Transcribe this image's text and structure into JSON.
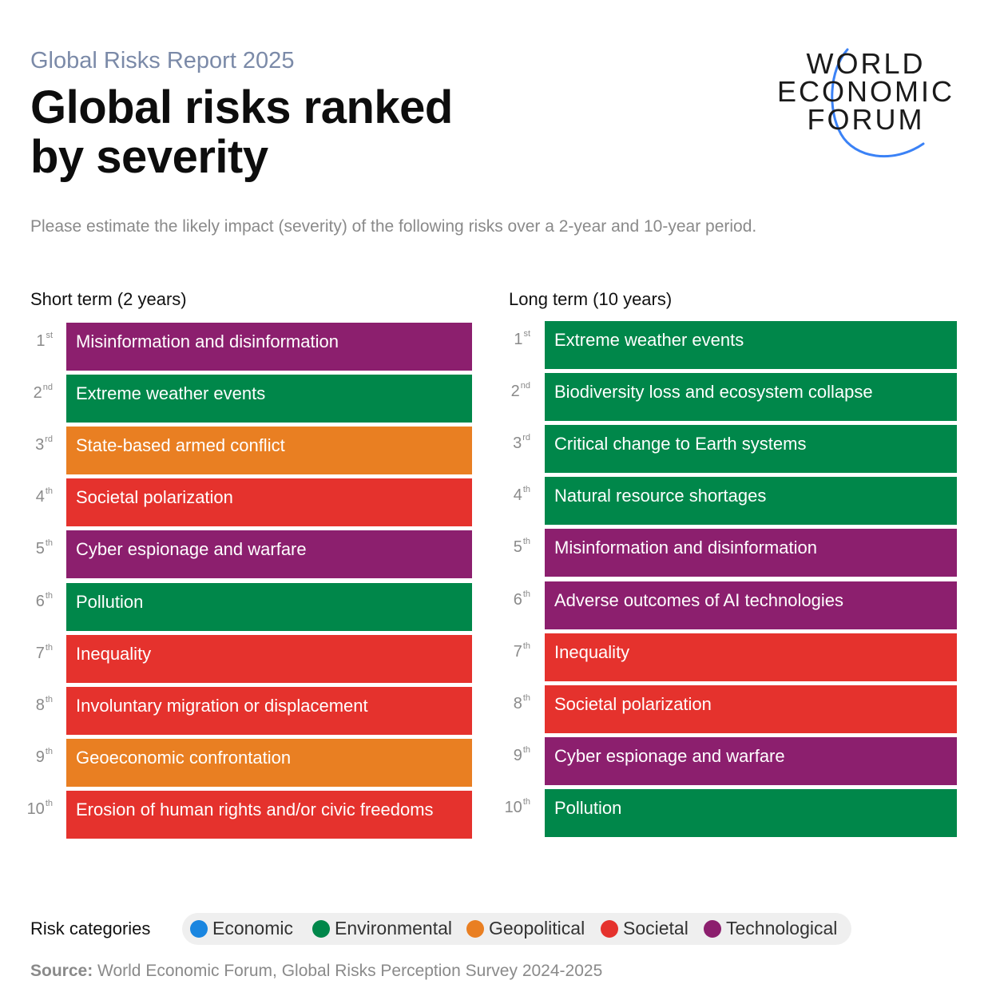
{
  "header": {
    "eyebrow": "Global Risks Report 2025",
    "title_line1": "Global risks ranked",
    "title_line2": "by severity",
    "subtitle": "Please estimate the likely impact (severity) of the following risks over a 2-year and 10-year period."
  },
  "logo": {
    "line1": "WORLD",
    "line2": "ECONOMIC",
    "line3": "FORUM",
    "accent_color": "#3b82f6"
  },
  "colors": {
    "Economic": "#1a86e0",
    "Environmental": "#00874a",
    "Geopolitical": "#e97f22",
    "Societal": "#e5322d",
    "Technological": "#8c1f6e"
  },
  "chart_data": {
    "type": "table",
    "columns": [
      {
        "heading": "Short term (2 years)",
        "rows": [
          {
            "rank": "1",
            "suffix": "st",
            "label": "Misinformation and disinformation",
            "category": "Technological"
          },
          {
            "rank": "2",
            "suffix": "nd",
            "label": "Extreme weather events",
            "category": "Environmental"
          },
          {
            "rank": "3",
            "suffix": "rd",
            "label": "State-based armed conflict",
            "category": "Geopolitical"
          },
          {
            "rank": "4",
            "suffix": "th",
            "label": "Societal polarization",
            "category": "Societal"
          },
          {
            "rank": "5",
            "suffix": "th",
            "label": "Cyber espionage and warfare",
            "category": "Technological"
          },
          {
            "rank": "6",
            "suffix": "th",
            "label": "Pollution",
            "category": "Environmental"
          },
          {
            "rank": "7",
            "suffix": "th",
            "label": "Inequality",
            "category": "Societal"
          },
          {
            "rank": "8",
            "suffix": "th",
            "label": "Involuntary migration or displacement",
            "category": "Societal"
          },
          {
            "rank": "9",
            "suffix": "th",
            "label": "Geoeconomic confrontation",
            "category": "Geopolitical"
          },
          {
            "rank": "10",
            "suffix": "th",
            "label": "Erosion of human rights and/or civic freedoms",
            "category": "Societal"
          }
        ]
      },
      {
        "heading": "Long term (10 years)",
        "rows": [
          {
            "rank": "1",
            "suffix": "st",
            "label": "Extreme weather events",
            "category": "Environmental"
          },
          {
            "rank": "2",
            "suffix": "nd",
            "label": "Biodiversity loss and ecosystem collapse",
            "category": "Environmental"
          },
          {
            "rank": "3",
            "suffix": "rd",
            "label": "Critical change to Earth systems",
            "category": "Environmental"
          },
          {
            "rank": "4",
            "suffix": "th",
            "label": "Natural resource shortages",
            "category": "Environmental"
          },
          {
            "rank": "5",
            "suffix": "th",
            "label": "Misinformation and disinformation",
            "category": "Technological"
          },
          {
            "rank": "6",
            "suffix": "th",
            "label": "Adverse outcomes of AI technologies",
            "category": "Technological"
          },
          {
            "rank": "7",
            "suffix": "th",
            "label": "Inequality",
            "category": "Societal"
          },
          {
            "rank": "8",
            "suffix": "th",
            "label": "Societal polarization",
            "category": "Societal"
          },
          {
            "rank": "9",
            "suffix": "th",
            "label": "Cyber espionage and warfare",
            "category": "Technological"
          },
          {
            "rank": "10",
            "suffix": "th",
            "label": "Pollution",
            "category": "Environmental"
          }
        ]
      }
    ]
  },
  "legend": {
    "label": "Risk categories",
    "items": [
      "Economic",
      "Environmental",
      "Geopolitical",
      "Societal",
      "Technological"
    ]
  },
  "source": {
    "label": "Source:",
    "text": " World Economic Forum, Global Risks Perception Survey 2024-2025"
  }
}
